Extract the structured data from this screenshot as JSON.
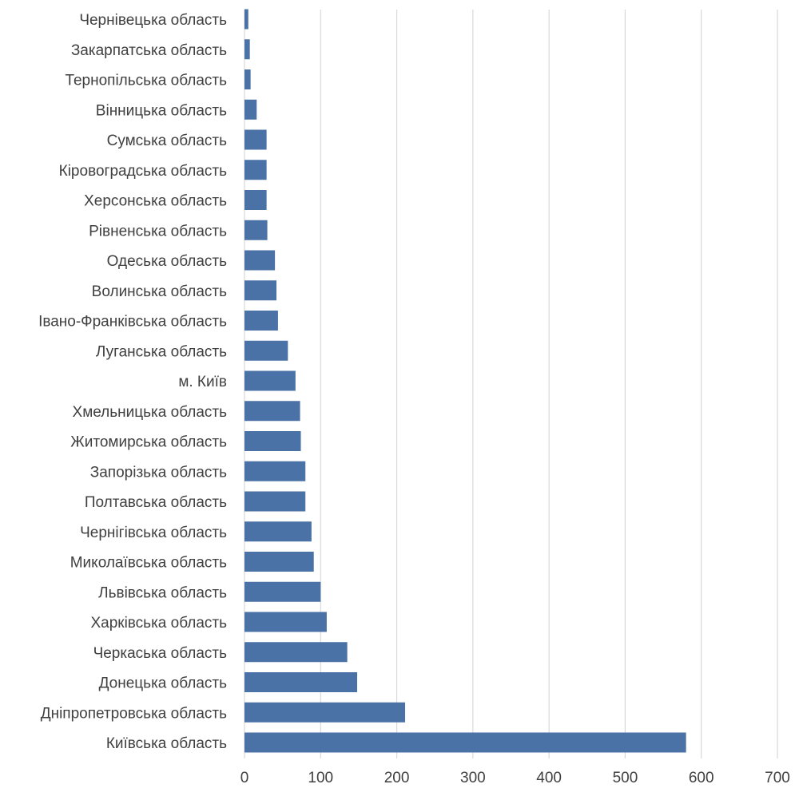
{
  "colors": {
    "bar": "#4a72a7",
    "grid": "#d9d9d9",
    "text": "#404040"
  },
  "chart_data": {
    "type": "bar",
    "orientation": "horizontal",
    "title": "",
    "xlabel": "",
    "ylabel": "",
    "xlim": [
      0,
      700
    ],
    "x_ticks": [
      "0",
      "100",
      "200",
      "300",
      "400",
      "500",
      "600",
      "700"
    ],
    "grid": "vertical gridlines",
    "legend": "none",
    "categories": [
      "Київська область",
      "Дніпропетровська область",
      "Донецька область",
      "Черкаська область",
      "Харківська область",
      "Львівська область",
      "Миколаївська область",
      "Чернігівська область",
      "Полтавська область",
      "Запорізька область",
      "Житомирська область",
      "Хмельницька область",
      "м. Київ",
      "Луганська область",
      "Івано-Франківська область",
      "Волинська область",
      "Одеська область",
      "Рівненська область",
      "Херсонська область",
      "Кіровоградська область",
      "Сумська область",
      "Вінницька область",
      "Тернопільська область",
      "Закарпатська область",
      "Чернівецька область"
    ],
    "values": [
      580,
      211,
      148,
      135,
      108,
      100,
      91,
      88,
      80,
      80,
      74,
      73,
      67,
      57,
      44,
      42,
      40,
      30,
      29,
      29,
      29,
      16,
      8,
      7,
      5
    ]
  }
}
